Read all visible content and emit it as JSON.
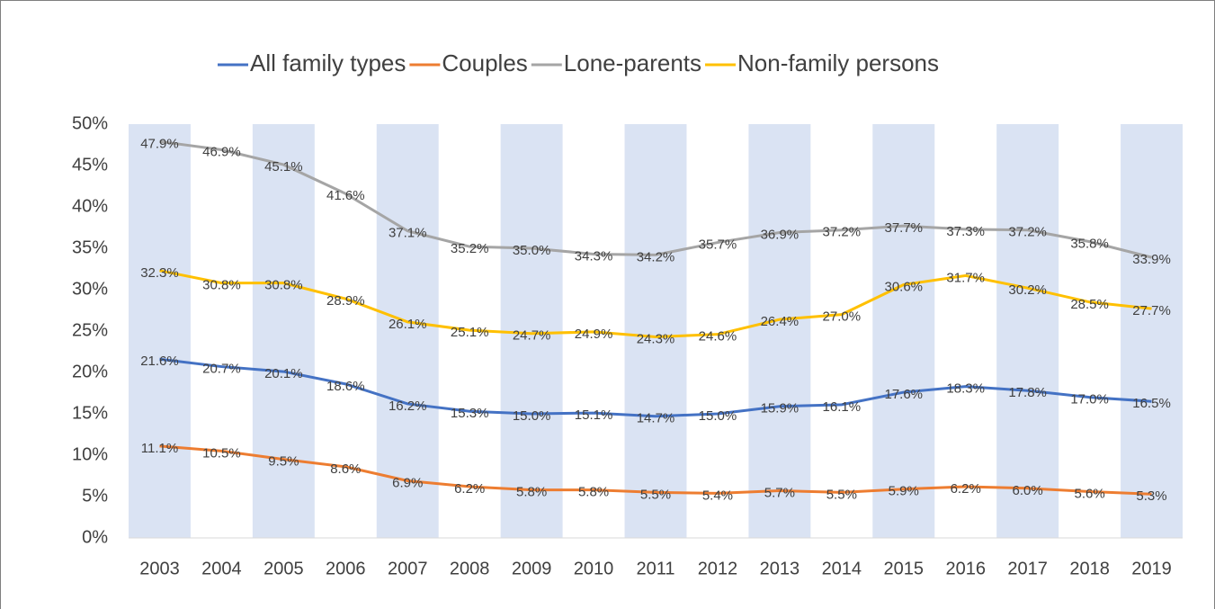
{
  "chart_data": {
    "type": "line",
    "categories": [
      "2003",
      "2004",
      "2005",
      "2006",
      "2007",
      "2008",
      "2009",
      "2010",
      "2011",
      "2012",
      "2013",
      "2014",
      "2015",
      "2016",
      "2017",
      "2018",
      "2019"
    ],
    "series": [
      {
        "name": "All family types",
        "color": "#4472c4",
        "values": [
          21.6,
          20.7,
          20.1,
          18.6,
          16.2,
          15.3,
          15.0,
          15.1,
          14.7,
          15.0,
          15.9,
          16.1,
          17.6,
          18.3,
          17.8,
          17.0,
          16.5
        ],
        "value_labels": [
          "21.6%",
          "20.7%",
          "20.1%",
          "18.6%",
          "16.2%",
          "15.3%",
          "15.0%",
          "15.1%",
          "14.7%",
          "15.0%",
          "15.9%",
          "16.1%",
          "17.6%",
          "18.3%",
          "17.8%",
          "17.0%",
          "16.5%"
        ]
      },
      {
        "name": "Couples",
        "color": "#ed7d31",
        "values": [
          11.1,
          10.5,
          9.5,
          8.6,
          6.9,
          6.2,
          5.8,
          5.8,
          5.5,
          5.4,
          5.7,
          5.5,
          5.9,
          6.2,
          6.0,
          5.6,
          5.3
        ],
        "value_labels": [
          "11.1%",
          "10.5%",
          "9.5%",
          "8.6%",
          "6.9%",
          "6.2%",
          "5.8%",
          "5.8%",
          "5.5%",
          "5.4%",
          "5.7%",
          "5.5%",
          "5.9%",
          "6.2%",
          "6.0%",
          "5.6%",
          "5.3%"
        ]
      },
      {
        "name": "Lone-parents",
        "color": "#a5a5a5",
        "values": [
          47.9,
          46.9,
          45.1,
          41.6,
          37.1,
          35.2,
          35.0,
          34.3,
          34.2,
          35.7,
          36.9,
          37.2,
          37.7,
          37.3,
          37.2,
          35.8,
          33.9
        ],
        "value_labels": [
          "47.9%",
          "46.9%",
          "45.1%",
          "41.6%",
          "37.1%",
          "35.2%",
          "35.0%",
          "34.3%",
          "34.2%",
          "35.7%",
          "36.9%",
          "37.2%",
          "37.7%",
          "37.3%",
          "37.2%",
          "35.8%",
          "33.9%"
        ]
      },
      {
        "name": "Non-family persons",
        "color": "#ffc000",
        "values": [
          32.3,
          30.8,
          30.8,
          28.9,
          26.1,
          25.1,
          24.7,
          24.9,
          24.3,
          24.6,
          26.4,
          27.0,
          30.6,
          31.7,
          30.2,
          28.5,
          27.7
        ],
        "value_labels": [
          "32.3%",
          "30.8%",
          "30.8%",
          "28.9%",
          "26.1%",
          "25.1%",
          "24.7%",
          "24.9%",
          "24.3%",
          "24.6%",
          "26.4%",
          "27.0%",
          "30.6%",
          "31.7%",
          "30.2%",
          "28.5%",
          "27.7%"
        ]
      }
    ],
    "ylim": [
      0,
      50
    ],
    "yticks": [
      {
        "value": 0,
        "label": "0%"
      },
      {
        "value": 5,
        "label": "5%"
      },
      {
        "value": 10,
        "label": "10%"
      },
      {
        "value": 15,
        "label": "15%"
      },
      {
        "value": 20,
        "label": "20%"
      },
      {
        "value": 25,
        "label": "25%"
      },
      {
        "value": 30,
        "label": "30%"
      },
      {
        "value": 35,
        "label": "35%"
      },
      {
        "value": 40,
        "label": "40%"
      },
      {
        "value": 45,
        "label": "45%"
      },
      {
        "value": 50,
        "label": "50%"
      }
    ],
    "legend": "top"
  }
}
